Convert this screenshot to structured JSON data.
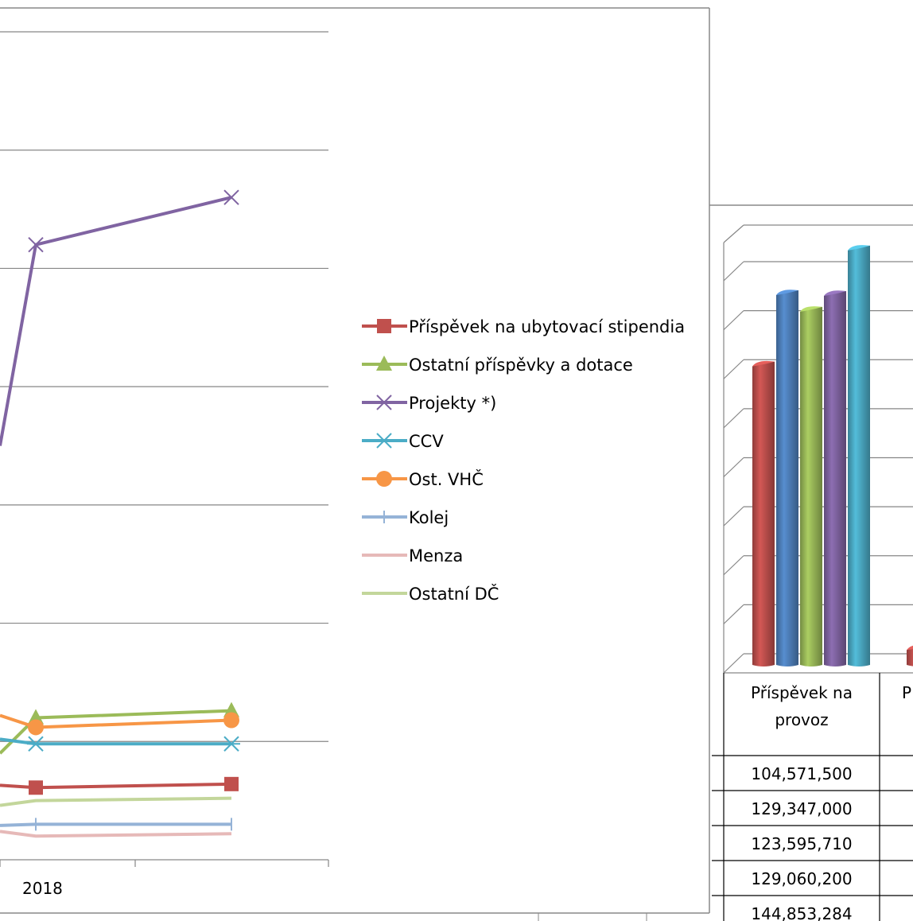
{
  "chart_data": [
    {
      "type": "line",
      "x": [
        "2018",
        ""
      ],
      "series": [
        {
          "name": "Příspěvek na ubytovací stipendia",
          "color": "#C0504D",
          "marker": "square",
          "values": [
            3.05,
            3.2
          ]
        },
        {
          "name": "Ostatní příspěvky a dotace",
          "color": "#9BBB59",
          "marker": "triangle",
          "values": [
            6.0,
            6.3
          ]
        },
        {
          "name": "Projekty *)",
          "color": "#8064A2",
          "marker": "x",
          "values": [
            26.0,
            28.0
          ]
        },
        {
          "name": "CCV",
          "color": "#4BACC6",
          "marker": "star",
          "values": [
            4.9,
            4.9
          ]
        },
        {
          "name": "Ost. VHČ",
          "color": "#F79646",
          "marker": "circle",
          "values": [
            5.6,
            5.9
          ]
        },
        {
          "name": "Kolej",
          "color": "#95B3D7",
          "marker": "plus",
          "values": [
            1.5,
            1.5
          ]
        },
        {
          "name": "Menza",
          "color": "#E6B9B8",
          "marker": "none",
          "values": [
            1.0,
            1.1
          ]
        },
        {
          "name": "Ostatní DČ",
          "color": "#C3D69B",
          "marker": "none",
          "values": [
            2.5,
            2.6
          ]
        }
      ],
      "legend": "right",
      "grid": true
    },
    {
      "type": "bar",
      "categories": [
        "Příspěvek na provoz",
        "P"
      ],
      "series": [
        {
          "color": "#C0504D",
          "values": [
            104571500,
            6000000
          ]
        },
        {
          "color": "#4F81BD",
          "values": [
            129347000,
            null
          ]
        },
        {
          "color": "#9BBB59",
          "values": [
            123595710,
            null
          ]
        },
        {
          "color": "#8064A2",
          "values": [
            129060200,
            null
          ]
        },
        {
          "color": "#4BACC6",
          "values": [
            144853284,
            null
          ]
        }
      ],
      "table_values": [
        "104,571,500",
        "129,347,000",
        "123,595,710",
        "129,060,200",
        "144,853,284"
      ],
      "ylim": [
        0,
        160000000
      ],
      "grid": true
    }
  ]
}
